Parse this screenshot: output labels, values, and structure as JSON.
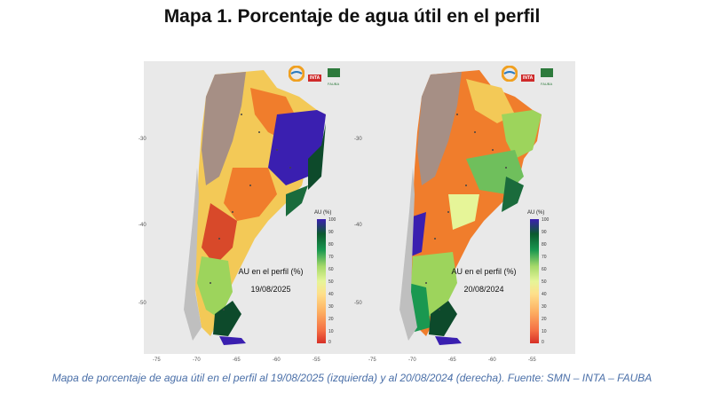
{
  "title": "Mapa 1. Porcentaje de agua útil en el perfil",
  "caption": "Mapa de porcentaje de agua útil en el perfil al 19/08/2025 (izquierda) y al 20/08/2024 (derecha). Fuente: SMN – INTA – FAUBA",
  "maps": [
    {
      "label_line1": "AU en el perfil (%)",
      "date": "19/08/2025"
    },
    {
      "label_line1": "AU en el perfil (%)",
      "date": "20/08/2024"
    }
  ],
  "legend": {
    "title": "AU (%)",
    "ticks": [
      "100",
      "90",
      "80",
      "70",
      "60",
      "50",
      "40",
      "30",
      "20",
      "10",
      "0"
    ]
  },
  "axes": {
    "lat_ticks": [
      "-30",
      "-40",
      "-50"
    ],
    "lon_ticks": [
      "-75",
      "-70",
      "-65",
      "-60",
      "-55"
    ]
  },
  "logos": {
    "inta": "INTA",
    "fauba": "FAUBA"
  },
  "colors": {
    "dry": "#d73027",
    "mid": "#fee08b",
    "wet": "#1a9850",
    "saturated": "#3a1fb0",
    "no_data": "#a68f85"
  }
}
